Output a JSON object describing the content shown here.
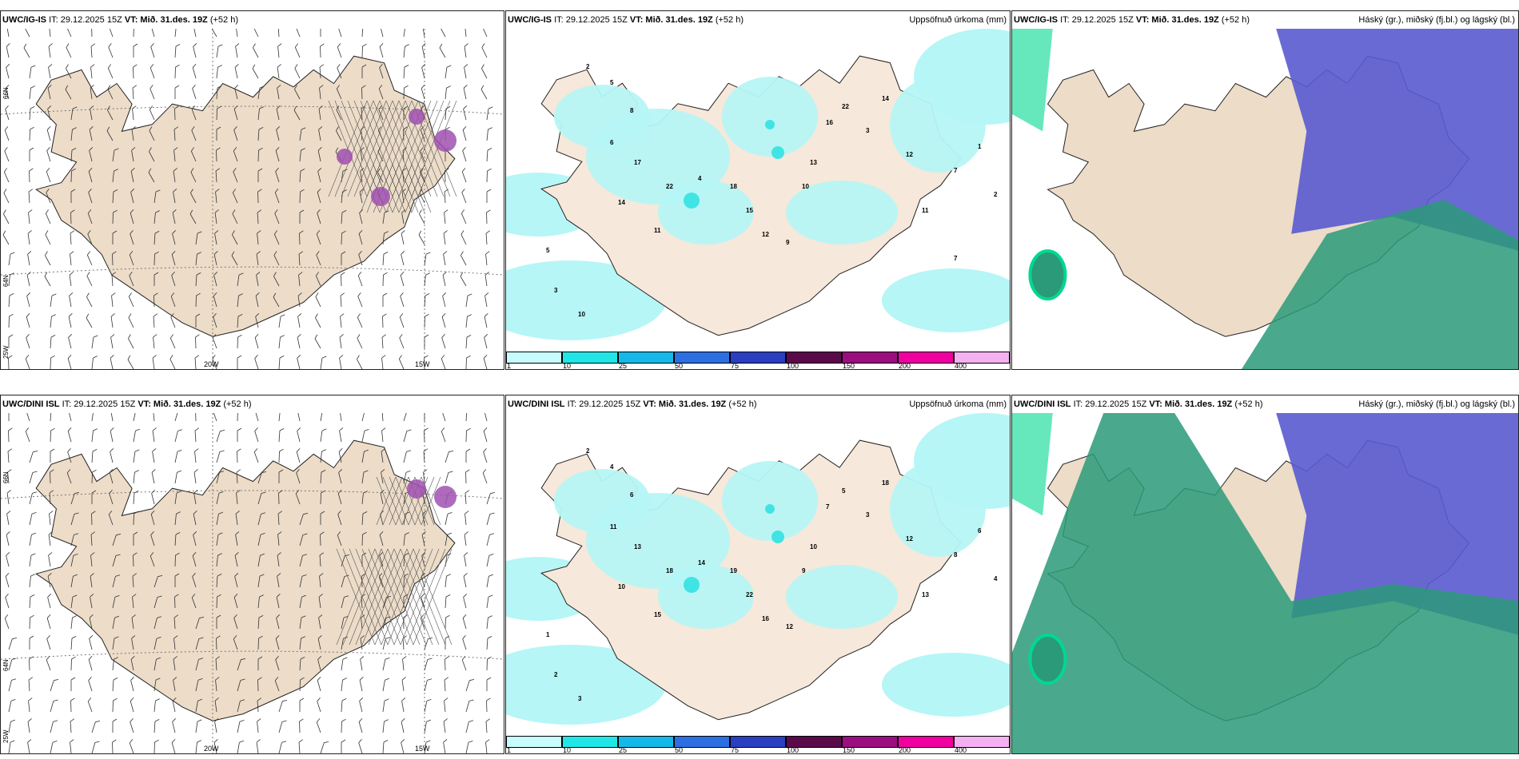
{
  "panels": [
    {
      "model": "UWC/IG-IS",
      "it": "IT: 29.12.2025 15Z",
      "vt": "VT: Mið. 31.des. 19Z",
      "lead": "(+52 h)",
      "title": ""
    },
    {
      "model": "UWC/IG-IS",
      "it": "IT: 29.12.2025 15Z",
      "vt": "VT: Mið. 31.des. 19Z",
      "lead": "(+52 h)",
      "title": "Uppsöfnuð úrkoma (mm)"
    },
    {
      "model": "UWC/IG-IS",
      "it": "IT: 29.12.2025 15Z",
      "vt": "VT: Mið. 31.des. 19Z",
      "lead": "(+52 h)",
      "title": "Háský (gr.), miðský (fj.bl.) og lágský (bl.)"
    },
    {
      "model": "UWC/DINI ISL",
      "it": "IT: 29.12.2025 15Z",
      "vt": "VT: Mið. 31.des. 19Z",
      "lead": "(+52 h)",
      "title": ""
    },
    {
      "model": "UWC/DINI ISL",
      "it": "IT: 29.12.2025 15Z",
      "vt": "VT: Mið. 31.des. 19Z",
      "lead": "(+52 h)",
      "title": "Uppsöfnuð úrkoma (mm)"
    },
    {
      "model": "UWC/DINI ISL",
      "it": "IT: 29.12.2025 15Z",
      "vt": "VT: Mið. 31.des. 19Z",
      "lead": "(+52 h)",
      "title": "Háský (gr.), miðský (fj.bl.) og lágský (bl.)"
    }
  ],
  "axes": {
    "lon_20": "20W",
    "lon_15": "15W",
    "lat_66": "66N",
    "lat_64": "64N",
    "lon_25": "25W"
  },
  "colorbar": {
    "labels": [
      "1",
      "10",
      "25",
      "50",
      "75",
      "100",
      "150",
      "200",
      "400"
    ],
    "colors": [
      "#c8fbfb",
      "#22e6e6",
      "#16b8e8",
      "#2d6fe0",
      "#2a3fc0",
      "#5a0a4a",
      "#9a0e80",
      "#f000a0",
      "#f4b0f0"
    ]
  },
  "colors": {
    "land": "#ecdcc8",
    "precip_light": "#b6f6f6",
    "precip_mid": "#40e4e4",
    "cloud_high": "#2a9a78",
    "cloud_mid": "#5a5ad0",
    "cloud_low_edge": "#00d890"
  },
  "precip_top": [
    "2",
    "5",
    "8",
    "6",
    "17",
    "14",
    "11",
    "22",
    "4",
    "18",
    "15",
    "12",
    "9",
    "10",
    "13",
    "16",
    "22",
    "3",
    "14",
    "12",
    "11",
    "7",
    "1",
    "2",
    "5",
    "3",
    "10",
    "7"
  ],
  "precip_bottom": [
    "2",
    "4",
    "6",
    "11",
    "13",
    "10",
    "15",
    "18",
    "14",
    "19",
    "22",
    "16",
    "12",
    "9",
    "10",
    "7",
    "5",
    "3",
    "18",
    "12",
    "13",
    "8",
    "6",
    "4",
    "1",
    "2",
    "3"
  ]
}
